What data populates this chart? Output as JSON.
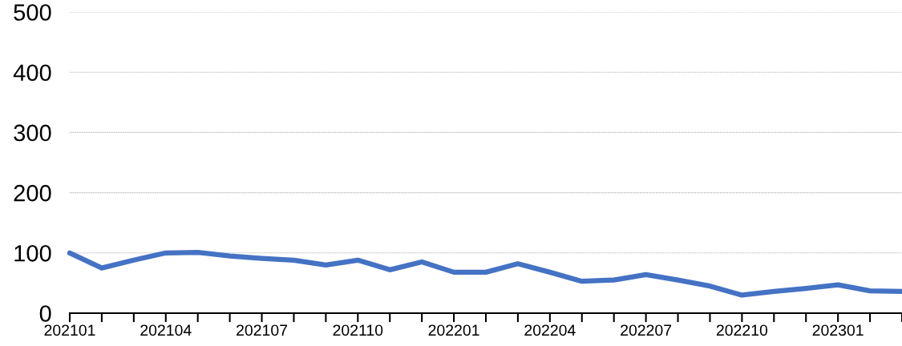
{
  "chart_data": {
    "type": "line",
    "categories": [
      "202101",
      null,
      null,
      "202104",
      null,
      null,
      "202107",
      null,
      null,
      "202110",
      null,
      null,
      "202201",
      null,
      null,
      "202204",
      null,
      null,
      "202207",
      null,
      null,
      "202210",
      null,
      null,
      "202301",
      null,
      null
    ],
    "series": [
      {
        "color": "#4472c4",
        "values": [
          100,
          75,
          88,
          100,
          101,
          95,
          91,
          88,
          80,
          88,
          72,
          85,
          68,
          68,
          82,
          68,
          53,
          55,
          64,
          55,
          45,
          30,
          36,
          41,
          47,
          37,
          36
        ]
      }
    ],
    "ylim": [
      0,
      500
    ],
    "yticks": [
      0,
      100,
      200,
      300,
      400,
      500
    ],
    "grid": "y",
    "marker": "none",
    "line_style": "solid"
  }
}
